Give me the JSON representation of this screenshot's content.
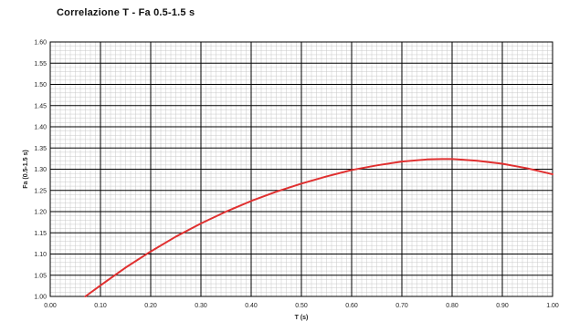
{
  "chart_data": {
    "type": "line",
    "title": "Correlazione T - Fa 0.5-1.5 s",
    "xlabel": "T (s)",
    "ylabel": "Fa (0.5-1.5 s)",
    "xlim": [
      0.0,
      1.0
    ],
    "ylim": [
      1.0,
      1.6
    ],
    "x_ticks": [
      "0.00",
      "0.10",
      "0.20",
      "0.30",
      "0.40",
      "0.50",
      "0.60",
      "0.70",
      "0.80",
      "0.90",
      "1.00"
    ],
    "y_ticks": [
      "1.00",
      "1.05",
      "1.10",
      "1.15",
      "1.20",
      "1.25",
      "1.30",
      "1.35",
      "1.40",
      "1.45",
      "1.50",
      "1.55",
      "1.60"
    ],
    "grid": true,
    "series": [
      {
        "color": "#e03030",
        "x": [
          0.07,
          0.1,
          0.15,
          0.2,
          0.25,
          0.3,
          0.35,
          0.4,
          0.45,
          0.5,
          0.55,
          0.6,
          0.65,
          0.7,
          0.75,
          0.78,
          0.8,
          0.85,
          0.9,
          0.95,
          1.0
        ],
        "y": [
          1.0,
          1.026,
          1.068,
          1.106,
          1.141,
          1.172,
          1.2,
          1.225,
          1.247,
          1.266,
          1.283,
          1.298,
          1.309,
          1.318,
          1.323,
          1.324,
          1.324,
          1.32,
          1.313,
          1.302,
          1.288
        ]
      }
    ]
  }
}
